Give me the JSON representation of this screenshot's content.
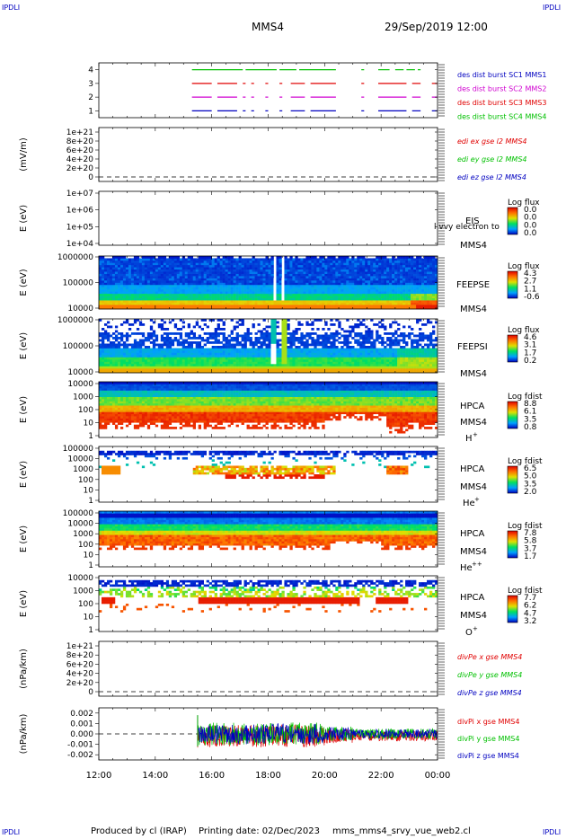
{
  "header": {
    "corner_left_top": "IPDLI",
    "corner_right_top": "IPDLI",
    "corner_left_bottom": "IPDLI",
    "corner_right_bottom": "IPDLI",
    "spacecraft": "MMS4",
    "date_time": "29/Sep/2019 12:00"
  },
  "footer": {
    "produced_by": "Produced by cl (IRAP)",
    "printing_date": "Printing date: 02/Dec/2023",
    "script_name": "mms_mms4_srvy_vue_web2.cl"
  },
  "colors": {
    "red": "#e00000",
    "green": "#00c000",
    "blue": "#0000c0",
    "magenta": "#d000d0",
    "dashed": "#000000"
  },
  "chart_data": [
    {
      "id": "burst",
      "type": "line",
      "ylim": [
        0.5,
        4.5
      ],
      "yticks": [
        "1",
        "2",
        "3",
        "4"
      ],
      "legend": [
        {
          "text": "des dist burst SC1 MMS1",
          "color": "#0000c0"
        },
        {
          "text": "des dist burst SC2 MMS2",
          "color": "#d000d0"
        },
        {
          "text": "des dist burst SC3 MMS3",
          "color": "#e00000"
        },
        {
          "text": "des dist burst SC4 MMS4",
          "color": "#00c000"
        }
      ],
      "series": [
        {
          "level": 4,
          "color": "#00c000",
          "segments": [
            [
              15.3,
              17.1
            ],
            [
              17.2,
              18.3
            ],
            [
              18.4,
              19.0
            ],
            [
              19.1,
              20.4
            ],
            [
              21.3,
              21.4
            ],
            [
              21.9,
              22.3
            ],
            [
              22.5,
              22.8
            ],
            [
              22.9,
              23.2
            ],
            [
              23.3,
              23.4
            ]
          ]
        },
        {
          "level": 3,
          "color": "#e00000",
          "segments": [
            [
              15.3,
              16.0
            ],
            [
              16.2,
              16.9
            ],
            [
              17.1,
              17.2
            ],
            [
              17.4,
              17.5
            ],
            [
              17.9,
              18.0
            ],
            [
              18.4,
              18.5
            ],
            [
              18.8,
              19.3
            ],
            [
              19.5,
              20.4
            ],
            [
              21.3,
              21.4
            ],
            [
              21.9,
              22.9
            ],
            [
              23.1,
              23.4
            ],
            [
              23.8,
              24.0
            ]
          ]
        },
        {
          "level": 2,
          "color": "#d000d0",
          "segments": [
            [
              15.3,
              16.0
            ],
            [
              16.2,
              16.9
            ],
            [
              17.1,
              17.2
            ],
            [
              17.4,
              17.5
            ],
            [
              17.9,
              18.0
            ],
            [
              18.4,
              18.5
            ],
            [
              18.8,
              19.3
            ],
            [
              19.5,
              20.4
            ],
            [
              21.3,
              21.4
            ],
            [
              21.9,
              22.9
            ],
            [
              23.1,
              23.4
            ],
            [
              23.8,
              24.0
            ]
          ]
        },
        {
          "level": 1,
          "color": "#0000c0",
          "segments": [
            [
              15.3,
              16.0
            ],
            [
              16.2,
              16.9
            ],
            [
              17.1,
              17.2
            ],
            [
              17.4,
              17.5
            ],
            [
              17.9,
              18.0
            ],
            [
              18.4,
              18.5
            ],
            [
              18.8,
              19.3
            ],
            [
              19.5,
              20.4
            ],
            [
              21.3,
              21.4
            ],
            [
              21.9,
              22.9
            ],
            [
              23.1,
              23.4
            ],
            [
              23.8,
              24.0
            ]
          ]
        }
      ]
    },
    {
      "id": "edi",
      "type": "line",
      "ylabel": "(mV/m)",
      "ylim": [
        0,
        1e+21
      ],
      "yticks": [
        "0",
        "2e+20",
        "4e+20",
        "6e+20",
        "8e+20",
        "1e+21"
      ],
      "zero_dashed": true,
      "legend": [
        {
          "text": "edi ex gse l2 MMS4",
          "color": "#e00000"
        },
        {
          "text": "edi ey gse l2 MMS4",
          "color": "#00c000"
        },
        {
          "text": "edi ez gse l2 MMS4",
          "color": "#0000c0"
        }
      ]
    },
    {
      "id": "eis",
      "type": "heatmap",
      "ylabel": "E (eV)",
      "yscale": "log",
      "yticks": [
        "1e+04",
        "1e+05",
        "1e+06",
        "1e+07"
      ],
      "labels": [
        "EIS",
        "MMS4"
      ],
      "overlay_text": "l vvy electron to",
      "colorbar_title": "Log flux",
      "colorbar_ticks": [
        "0.0",
        "0.0",
        "0.0",
        "0.0"
      ]
    },
    {
      "id": "feepse",
      "type": "heatmap",
      "ylabel": "E (eV)",
      "yscale": "log",
      "yticks": [
        "10000",
        "100000",
        "1000000"
      ],
      "labels": [
        "FEEPSE",
        "MMS4"
      ],
      "colorbar_title": "Log flux",
      "colorbar_ticks": [
        "4.3",
        "2.7",
        "1.1",
        "-0.6"
      ]
    },
    {
      "id": "feepsi",
      "type": "heatmap",
      "ylabel": "E (eV)",
      "yscale": "log",
      "yticks": [
        "10000",
        "100000",
        "1000000"
      ],
      "labels": [
        "FEEPSI",
        "MMS4"
      ],
      "colorbar_title": "Log flux",
      "colorbar_ticks": [
        "4.6",
        "3.1",
        "1.7",
        "0.2"
      ]
    },
    {
      "id": "hpca_h",
      "type": "heatmap",
      "ylabel": "E (eV)",
      "yscale": "log",
      "yticks": [
        "1",
        "10",
        "100",
        "1000",
        "10000"
      ],
      "labels": [
        "HPCA",
        "MMS4"
      ],
      "species": "H",
      "species_sup": "+",
      "colorbar_title": "Log fdist",
      "colorbar_ticks": [
        "8.8",
        "6.1",
        "3.5",
        "0.8"
      ]
    },
    {
      "id": "hpca_he",
      "type": "heatmap",
      "ylabel": "E (eV)",
      "yscale": "log",
      "yticks": [
        "1",
        "10",
        "100",
        "1000",
        "10000",
        "100000"
      ],
      "labels": [
        "HPCA",
        "MMS4"
      ],
      "species": "He",
      "species_sup": "+",
      "colorbar_title": "Log fdist",
      "colorbar_ticks": [
        "6.5",
        "5.0",
        "3.5",
        "2.0"
      ]
    },
    {
      "id": "hpca_hepp",
      "type": "heatmap",
      "ylabel": "E (eV)",
      "yscale": "log",
      "yticks": [
        "1",
        "10",
        "100",
        "1000",
        "10000",
        "100000"
      ],
      "labels": [
        "HPCA",
        "MMS4"
      ],
      "species": "He",
      "species_sup": "++",
      "colorbar_title": "Log fdist",
      "colorbar_ticks": [
        "7.8",
        "5.8",
        "3.7",
        "1.7"
      ]
    },
    {
      "id": "hpca_o",
      "type": "heatmap",
      "ylabel": "E (eV)",
      "yscale": "log",
      "yticks": [
        "1",
        "10",
        "100",
        "1000",
        "10000"
      ],
      "labels": [
        "HPCA",
        "MMS4"
      ],
      "species": "O",
      "species_sup": "+",
      "colorbar_title": "Log fdist",
      "colorbar_ticks": [
        "7.7",
        "6.2",
        "4.7",
        "3.2"
      ]
    },
    {
      "id": "divpe",
      "type": "line",
      "ylabel": "(nPa/km)",
      "ylim": [
        0,
        1e+21
      ],
      "yticks": [
        "0",
        "2e+20",
        "4e+20",
        "6e+20",
        "8e+20",
        "1e+21"
      ],
      "zero_dashed": true,
      "legend": [
        {
          "text": "divPe x gse MMS4",
          "color": "#e00000"
        },
        {
          "text": "divPe y gse MMS4",
          "color": "#00c000"
        },
        {
          "text": "divPe z gse MMS4",
          "color": "#0000c0"
        }
      ]
    },
    {
      "id": "divpi",
      "type": "line",
      "ylabel": "(nPa/km)",
      "ylim": [
        -0.0025,
        0.0025
      ],
      "yticks": [
        "-0.002",
        "-0.001",
        "0.000",
        "0.001",
        "0.002"
      ],
      "zero_dashed": true,
      "data_start_hour": 15.5,
      "legend": [
        {
          "text": "divPi x gse MMS4",
          "color": "#e00000"
        },
        {
          "text": "divPi y gse MMS4",
          "color": "#00c000"
        },
        {
          "text": "divPi z gse MMS4",
          "color": "#0000c0"
        }
      ]
    }
  ],
  "x_axis": {
    "range_hours": [
      12,
      24
    ],
    "ticks": [
      "12:00",
      "14:00",
      "16:00",
      "18:00",
      "20:00",
      "22:00",
      "00:00"
    ]
  }
}
